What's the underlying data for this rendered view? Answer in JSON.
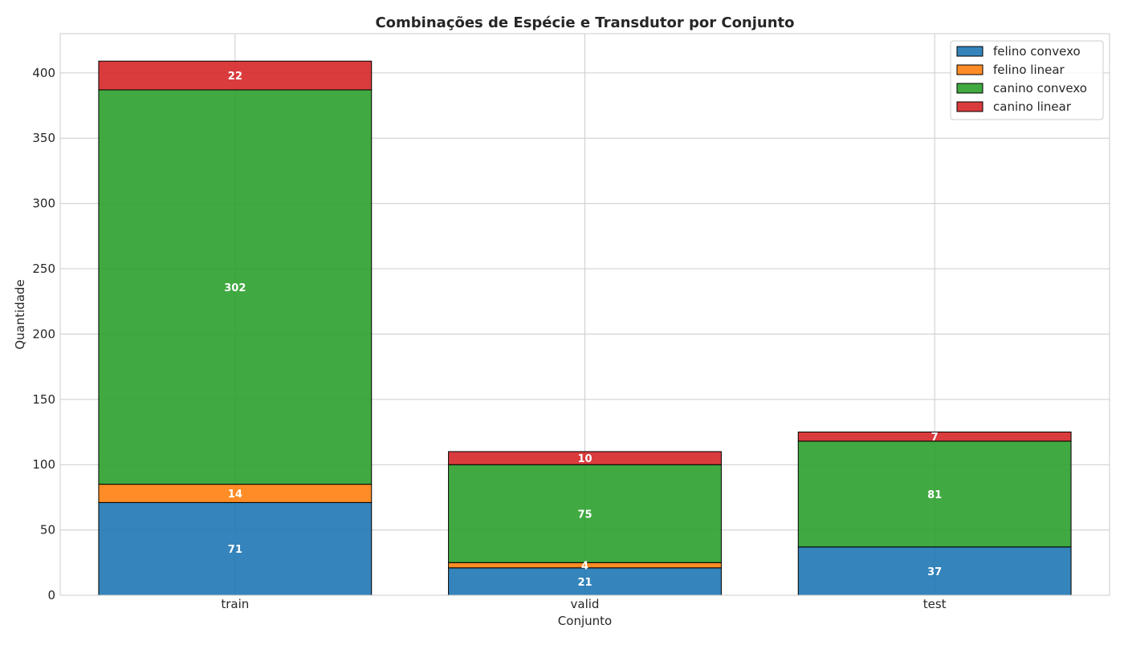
{
  "chart_data": {
    "type": "bar",
    "stacked": true,
    "title": "Combinações de Espécie e Transdutor por Conjunto",
    "xlabel": "Conjunto",
    "ylabel": "Quantidade",
    "categories": [
      "train",
      "valid",
      "test"
    ],
    "ylim": [
      0,
      430
    ],
    "yticks": [
      0,
      50,
      100,
      150,
      200,
      250,
      300,
      350,
      400
    ],
    "grid": true,
    "legend_position": "top-right",
    "series": [
      {
        "name": "felino convexo",
        "color": "#1f77b4",
        "values": [
          71,
          21,
          37
        ]
      },
      {
        "name": "felino linear",
        "color": "#ff7f0e",
        "values": [
          14,
          4,
          0
        ]
      },
      {
        "name": "canino convexo",
        "color": "#2ca02c",
        "values": [
          302,
          75,
          81
        ]
      },
      {
        "name": "canino linear",
        "color": "#d62728",
        "values": [
          22,
          10,
          7
        ]
      }
    ]
  }
}
